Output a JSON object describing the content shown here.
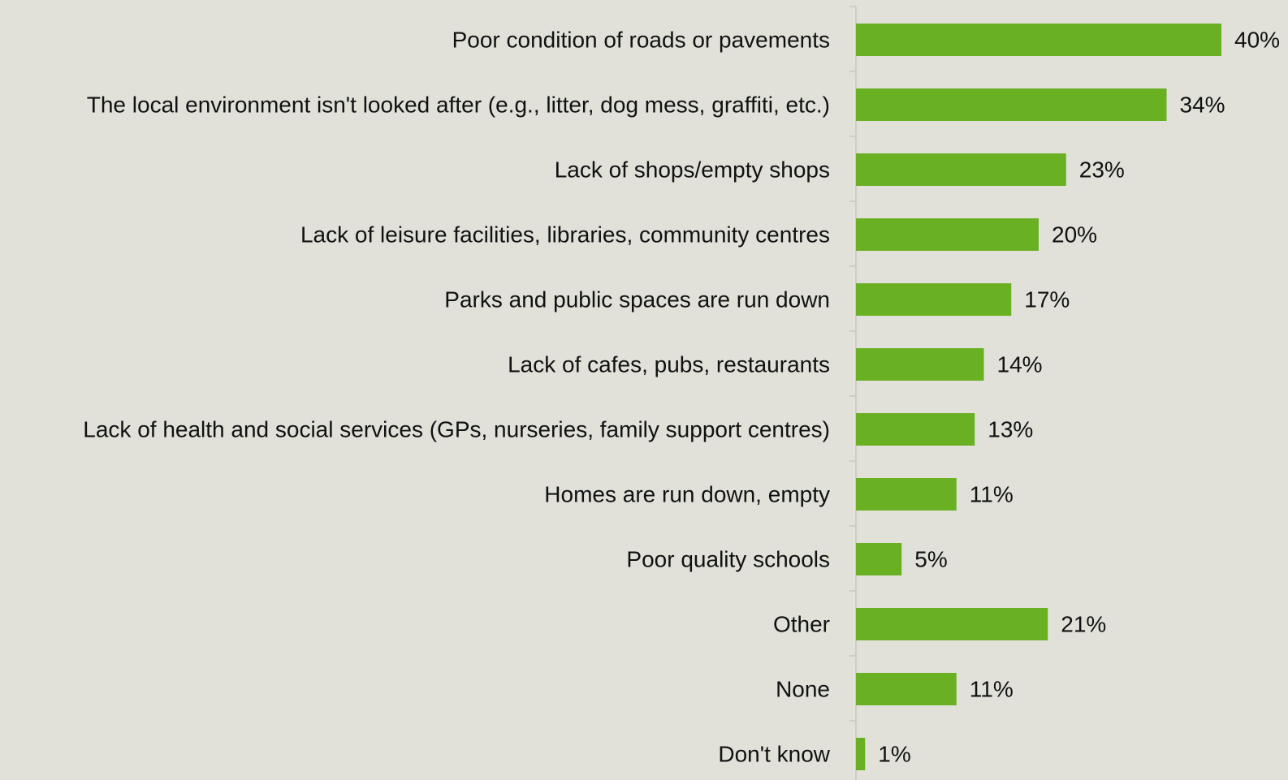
{
  "chart_data": {
    "type": "bar",
    "orientation": "horizontal",
    "categories": [
      "Poor condition of roads or pavements",
      "The local environment isn't looked after (e.g., litter, dog mess, graffiti, etc.)",
      "Lack of shops/empty shops",
      "Lack of leisure facilities, libraries, community centres",
      "Parks and public spaces are run down",
      "Lack of cafes, pubs, restaurants",
      "Lack of health and social services (GPs, nurseries, family support centres)",
      "Homes are run down, empty",
      "Poor quality schools",
      "Other",
      "None",
      "Don't know"
    ],
    "values": [
      40,
      34,
      23,
      20,
      17,
      14,
      13,
      11,
      5,
      21,
      11,
      1
    ],
    "value_labels": [
      "40%",
      "34%",
      "23%",
      "20%",
      "17%",
      "14%",
      "13%",
      "11%",
      "5%",
      "21%",
      "11%",
      "1%"
    ],
    "unit": "%",
    "xlim": [
      0,
      40
    ],
    "bar_color": "#6ab023",
    "background_color": "#e1e1da",
    "grid": false,
    "legend": "none",
    "title": "",
    "xlabel": "",
    "ylabel": ""
  }
}
